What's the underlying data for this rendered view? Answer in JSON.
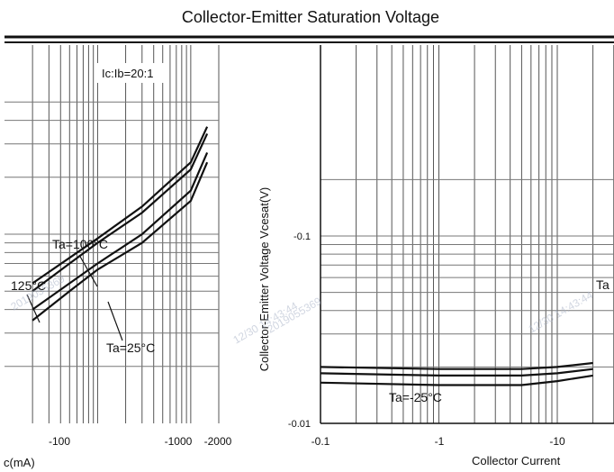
{
  "colors": {
    "ink": "#111111",
    "grid": "#555555",
    "watermark": "#aab4c8",
    "background": "#ffffff"
  },
  "chart_data": [
    {
      "type": "line",
      "title": "Collector-Emitter Saturation Voltage",
      "xlabel": "c(mA)",
      "x_scale": "log",
      "x_ticks": [
        "-100",
        "-1000",
        "-2000"
      ],
      "annotation": "Ic:Ib=20:1",
      "series": [
        {
          "name": "Ta=100°C",
          "x": [
            -20,
            -50,
            -100,
            -300,
            -1000,
            -1500
          ],
          "y": [
            0.05,
            0.07,
            0.09,
            0.13,
            0.22,
            0.34
          ]
        },
        {
          "name": "125°C",
          "x": [
            -20,
            -50,
            -100,
            -300,
            -1000,
            -1500
          ],
          "y": [
            0.055,
            0.075,
            0.095,
            0.14,
            0.24,
            0.37
          ]
        },
        {
          "name": "Ta=25°C",
          "x": [
            -20,
            -50,
            -100,
            -300,
            -1000,
            -1500
          ],
          "y": [
            0.04,
            0.055,
            0.07,
            0.1,
            0.17,
            0.27
          ]
        },
        {
          "name": "",
          "x": [
            -20,
            -50,
            -100,
            -300,
            -1000,
            -1500
          ],
          "y": [
            0.035,
            0.05,
            0.065,
            0.09,
            0.15,
            0.24
          ]
        }
      ],
      "series_labels": [
        "Ta=100°C",
        "125°C",
        "Ta=25°C"
      ]
    },
    {
      "type": "line",
      "title": "",
      "xlabel": "Collector Current",
      "ylabel": "Collector-Emitter Voltage   Vcesat(V)",
      "x_scale": "log",
      "y_scale": "log",
      "x_ticks": [
        "-0.1",
        "-1",
        "-10"
      ],
      "y_ticks": [
        "-0.1",
        "-0.01"
      ],
      "ylim": [
        -0.01,
        -0.2
      ],
      "series": [
        {
          "name": "Ta=-25°C",
          "x": [
            -0.1,
            -1,
            -5,
            -10,
            -20
          ],
          "y": [
            -0.02,
            -0.0195,
            -0.0195,
            -0.02,
            -0.021
          ]
        },
        {
          "name": "",
          "x": [
            -0.1,
            -1,
            -5,
            -10,
            -20
          ],
          "y": [
            -0.0185,
            -0.018,
            -0.018,
            -0.0185,
            -0.0195
          ]
        },
        {
          "name": "",
          "x": [
            -0.1,
            -1,
            -5,
            -10,
            -20
          ],
          "y": [
            -0.0165,
            -0.016,
            -0.016,
            -0.0168,
            -0.018
          ]
        }
      ],
      "series_labels": [
        "Ta=-25°C",
        "Ta"
      ]
    }
  ],
  "watermarks": [
    "12/30 14:43:44",
    "2019055369"
  ]
}
